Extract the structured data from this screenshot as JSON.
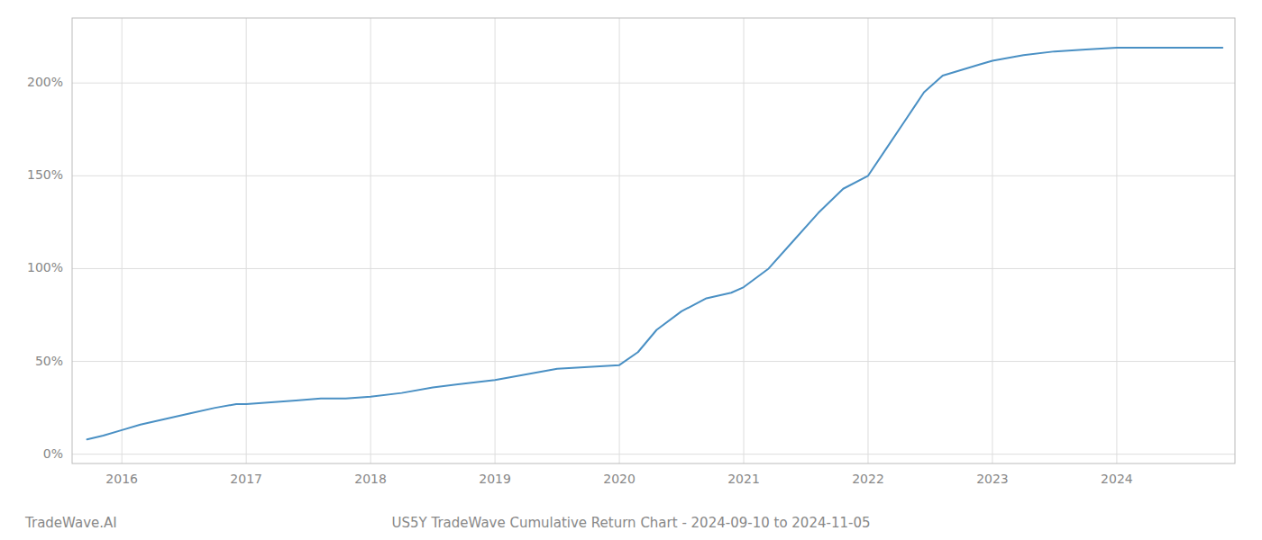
{
  "chart_data": {
    "type": "line",
    "title": "US5Y TradeWave Cumulative Return Chart - 2024-09-10 to 2024-11-05",
    "annotations": [
      "TradeWave.AI"
    ],
    "color": "#4a90c4",
    "grid": true,
    "x": [
      2015.72,
      2015.85,
      2016.0,
      2016.15,
      2016.35,
      2016.55,
      2016.75,
      2016.92,
      2017.0,
      2017.2,
      2017.4,
      2017.6,
      2017.8,
      2018.0,
      2018.25,
      2018.5,
      2018.75,
      2019.0,
      2019.25,
      2019.5,
      2019.75,
      2020.0,
      2020.15,
      2020.3,
      2020.5,
      2020.7,
      2020.9,
      2021.0,
      2021.2,
      2021.4,
      2021.6,
      2021.8,
      2022.0,
      2022.15,
      2022.3,
      2022.45,
      2022.6,
      2022.75,
      2022.9,
      2023.0,
      2023.25,
      2023.5,
      2023.75,
      2024.0,
      2024.25,
      2024.5,
      2024.75,
      2024.85
    ],
    "values": [
      8,
      10,
      13,
      16,
      19,
      22,
      25,
      27,
      27,
      28,
      29,
      30,
      30,
      31,
      33,
      36,
      38,
      40,
      43,
      46,
      47,
      48,
      55,
      67,
      77,
      84,
      87,
      90,
      100,
      115,
      130,
      143,
      150,
      165,
      180,
      195,
      204,
      207,
      210,
      212,
      215,
      217,
      218,
      219,
      219,
      219,
      219,
      219
    ],
    "xlim": [
      2015.6,
      2024.95
    ],
    "ylim": [
      -5,
      235
    ],
    "xticks": [
      2016,
      2017,
      2018,
      2019,
      2020,
      2021,
      2022,
      2023,
      2024
    ],
    "yticks": [
      {
        "value": 0,
        "label": "0%"
      },
      {
        "value": 50,
        "label": "50%"
      },
      {
        "value": 100,
        "label": "100%"
      },
      {
        "value": 150,
        "label": "150%"
      },
      {
        "value": 200,
        "label": "200%"
      }
    ]
  }
}
